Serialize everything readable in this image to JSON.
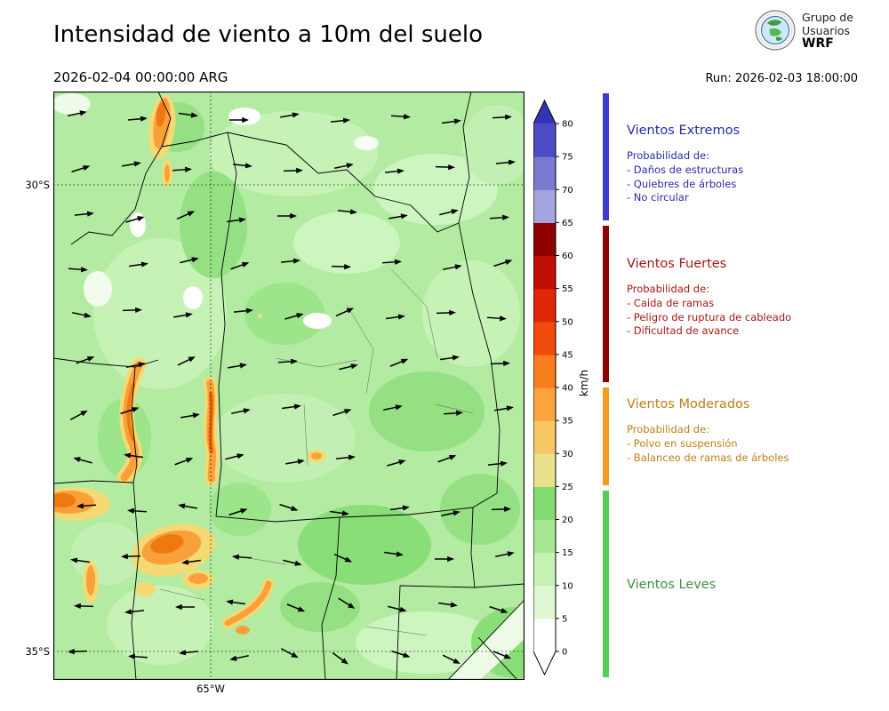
{
  "header": {
    "title": "Intensidad de viento a 10m del suelo",
    "valid_time": "2026-02-04 00:00:00 ARG",
    "run_label": "Run: 2026-02-03 18:00:00",
    "logo": {
      "line1": "Grupo de",
      "line2": "Usuarios",
      "line3": "WRF"
    }
  },
  "map": {
    "lat_labels": [
      "30°S",
      "35°S"
    ],
    "lon_labels": [
      "65°W"
    ],
    "wind_arrows": {
      "angles": [
        [
          12,
          5,
          -8,
          0,
          10,
          6,
          -4,
          8,
          3
        ],
        [
          18,
          10,
          4,
          -6,
          2,
          12,
          6,
          -2,
          5
        ],
        [
          6,
          16,
          24,
          8,
          0,
          -6,
          10,
          14,
          4
        ],
        [
          -4,
          8,
          14,
          20,
          6,
          -2,
          4,
          12,
          18
        ],
        [
          -12,
          2,
          10,
          6,
          16,
          24,
          8,
          2,
          -4
        ],
        [
          20,
          12,
          26,
          10,
          4,
          14,
          22,
          8,
          2
        ],
        [
          28,
          18,
          10,
          12,
          8,
          18,
          12,
          4,
          10
        ],
        [
          165,
          172,
          20,
          14,
          10,
          6,
          16,
          20,
          6
        ],
        [
          184,
          176,
          170,
          18,
          -18,
          -8,
          8,
          12,
          2
        ],
        [
          172,
          182,
          188,
          176,
          -14,
          -24,
          -8,
          0,
          12
        ],
        [
          178,
          186,
          180,
          172,
          -22,
          -32,
          -14,
          -8,
          -18
        ],
        [
          182,
          176,
          186,
          192,
          -28,
          -36,
          -18,
          -26,
          -22
        ]
      ]
    }
  },
  "colorbar": {
    "unit": "km/h",
    "ticks": [
      0,
      5,
      10,
      15,
      20,
      25,
      30,
      35,
      40,
      45,
      50,
      55,
      60,
      65,
      70,
      75,
      80
    ],
    "segment_colors_bottom_to_top": [
      "#ffffff",
      "#def8d4",
      "#c6f2b5",
      "#a8e894",
      "#83dc72",
      "#eae18c",
      "#f7c766",
      "#fba43d",
      "#f87d1d",
      "#f04a0e",
      "#df2607",
      "#c00e04",
      "#8e0000",
      "#a4a4e1",
      "#7a7ad3",
      "#4c4cc5"
    ],
    "extend_top_color": "#3434b9",
    "extend_bottom_color": "#ffffff"
  },
  "legend": {
    "sections": [
      {
        "title": "Vientos Extremos",
        "text_color": "#2a2aa8",
        "bar_color": "#3d3ccd",
        "items": [
          "Probabilidad de:",
          "- Daños de estructuras",
          "- Quiebres de árboles",
          "- No circular"
        ]
      },
      {
        "title": "Vientos Fuertes",
        "text_color": "#a81616",
        "bar_color": "#8b0000",
        "items": [
          "Probabilidad de:",
          "- Caida de ramas",
          "- Peligro de ruptura de cableado",
          "- Dificultad de avance"
        ]
      },
      {
        "title": "Vientos Moderados",
        "text_color": "#bf7d1a",
        "bar_color": "#f59a20",
        "items": [
          "Probabilidad de:",
          "- Polvo en suspensión",
          "- Balanceo de ramas de árboles"
        ]
      },
      {
        "title": "Vientos Leves",
        "text_color": "#3e8e3e",
        "bar_color": "#55cd55",
        "items": []
      }
    ]
  }
}
